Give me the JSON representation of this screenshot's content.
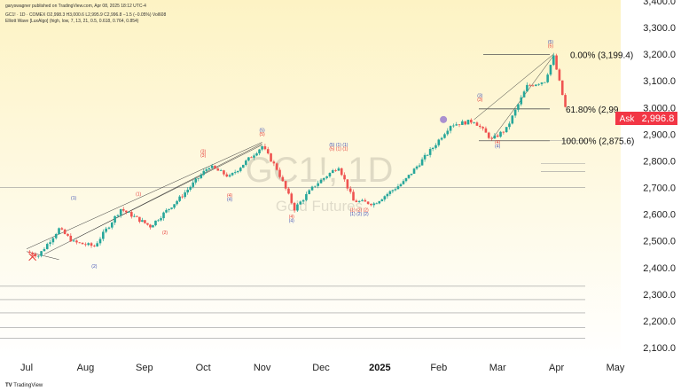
{
  "header": {
    "publisher_line": "garyswagner published on TradingView.com, Apr 08, 2025 18:12 UTC-4",
    "symbol_line": "GC1! · 1D · COMEX  O2,998.3  H3,000.6  L2,995.9  C2,996.8  −1.5 (−0.05%)  Vol608",
    "indicator_line": "Elliott Wave [LuxAlgo] (high, low, 7, 13, 21, 0.5, 0.618, 0.764, 0.854)"
  },
  "watermark": {
    "symbol": "GC1!, 1D",
    "name": "Gold Futures"
  },
  "logo_text": "TradingView",
  "colors": {
    "up": "#26a69a",
    "down": "#ef5350",
    "fib": "#555555",
    "bg_top": "#fdf3c4",
    "bg_bottom": "#ffffff",
    "ew_red": "#e53935",
    "ew_blue": "#3f51b5",
    "price_tag": "#f23645"
  },
  "chart_data": {
    "type": "candlestick",
    "y_axis": {
      "ylim": [
        2100,
        3400
      ],
      "ticks": [
        "2,100.0",
        "2,200.0",
        "2,300.0",
        "2,400.0",
        "2,500.0",
        "2,600.0",
        "2,700.0",
        "2,800.0",
        "2,900.0",
        "3,000.0",
        "3,100.0",
        "3,200.0",
        "3,300.0",
        "3,400.0"
      ],
      "tick_values": [
        2100,
        2200,
        2300,
        2400,
        2500,
        2600,
        2700,
        2800,
        2900,
        3000,
        3100,
        3200,
        3300,
        3400
      ]
    },
    "x_axis": {
      "labels": [
        "Jul",
        "Aug",
        "Sep",
        "Oct",
        "Nov",
        "Dec",
        "2025",
        "Feb",
        "Mar",
        "Apr",
        "May"
      ],
      "bold": [
        "2025"
      ]
    },
    "last_price": {
      "label": "Ask",
      "value": "2,996.8"
    },
    "fib_levels": [
      {
        "label": "0.00% (3,199.4)",
        "value": 3199.4
      },
      {
        "label": "61.80% (2,99",
        "value": 2995
      },
      {
        "label": "100.00% (2,875.6)",
        "value": 2875.6
      }
    ],
    "anchors": [
      {
        "month": 0,
        "price": 2460
      },
      {
        "month": 0.2,
        "price": 2445
      },
      {
        "month": 0.55,
        "price": 2545
      },
      {
        "month": 0.8,
        "price": 2495
      },
      {
        "month": 1.15,
        "price": 2480
      },
      {
        "month": 1.6,
        "price": 2620
      },
      {
        "month": 2.1,
        "price": 2555
      },
      {
        "month": 2.6,
        "price": 2660
      },
      {
        "month": 3.1,
        "price": 2780
      },
      {
        "month": 3.45,
        "price": 2740
      },
      {
        "month": 4.0,
        "price": 2855
      },
      {
        "month": 4.25,
        "price": 2770
      },
      {
        "month": 4.55,
        "price": 2620
      },
      {
        "month": 4.9,
        "price": 2710
      },
      {
        "month": 5.3,
        "price": 2780
      },
      {
        "month": 5.55,
        "price": 2650
      },
      {
        "month": 5.9,
        "price": 2640
      },
      {
        "month": 6.4,
        "price": 2720
      },
      {
        "month": 6.9,
        "price": 2850
      },
      {
        "month": 7.2,
        "price": 2935
      },
      {
        "month": 7.6,
        "price": 2950
      },
      {
        "month": 7.9,
        "price": 2880
      },
      {
        "month": 8.15,
        "price": 2920
      },
      {
        "month": 8.5,
        "price": 3080
      },
      {
        "month": 8.8,
        "price": 3100
      },
      {
        "month": 8.95,
        "price": 3190
      },
      {
        "month": 9.15,
        "price": 3000
      }
    ],
    "wave_labels": [
      {
        "text": "(1)",
        "month": 0.8,
        "price": 2655,
        "color": "blue"
      },
      {
        "text": "(2)",
        "month": 1.15,
        "price": 2400,
        "color": "blue"
      },
      {
        "text": "(1)",
        "month": 1.9,
        "price": 2670,
        "color": "red"
      },
      {
        "text": "(2)",
        "month": 2.35,
        "price": 2525,
        "color": "red"
      },
      {
        "text": "(3)",
        "month": 3.0,
        "price": 2830,
        "color": "red"
      },
      {
        "text": "(3)",
        "month": 3.0,
        "price": 2815,
        "color": "red"
      },
      {
        "text": "(4)",
        "month": 3.45,
        "price": 2665,
        "color": "red"
      },
      {
        "text": "(4)",
        "month": 3.45,
        "price": 2650,
        "color": "blue"
      },
      {
        "text": "(5)",
        "month": 4.0,
        "price": 2910,
        "color": "blue"
      },
      {
        "text": "(5)",
        "month": 4.0,
        "price": 2895,
        "color": "red"
      },
      {
        "text": "(4)",
        "month": 4.5,
        "price": 2585,
        "color": "red"
      },
      {
        "text": "(4)",
        "month": 4.5,
        "price": 2570,
        "color": "blue"
      },
      {
        "text": "(5) (1) (1)",
        "month": 5.3,
        "price": 2855,
        "color": "blue"
      },
      {
        "text": "(5) (1) (1)",
        "month": 5.3,
        "price": 2840,
        "color": "red"
      },
      {
        "text": "(1) (2) (2)",
        "month": 5.65,
        "price": 2610,
        "color": "red"
      },
      {
        "text": "(1) (2) (2)",
        "month": 5.65,
        "price": 2595,
        "color": "blue"
      },
      {
        "text": "(3)",
        "month": 7.7,
        "price": 3040,
        "color": "blue"
      },
      {
        "text": "(3)",
        "month": 7.7,
        "price": 3025,
        "color": "red"
      },
      {
        "text": "(4)",
        "month": 8.0,
        "price": 2865,
        "color": "red"
      },
      {
        "text": "(4)",
        "month": 8.0,
        "price": 2850,
        "color": "blue"
      },
      {
        "text": "(5)",
        "month": 8.9,
        "price": 3240,
        "color": "blue"
      },
      {
        "text": "(5)",
        "month": 8.9,
        "price": 3225,
        "color": "red"
      }
    ]
  }
}
